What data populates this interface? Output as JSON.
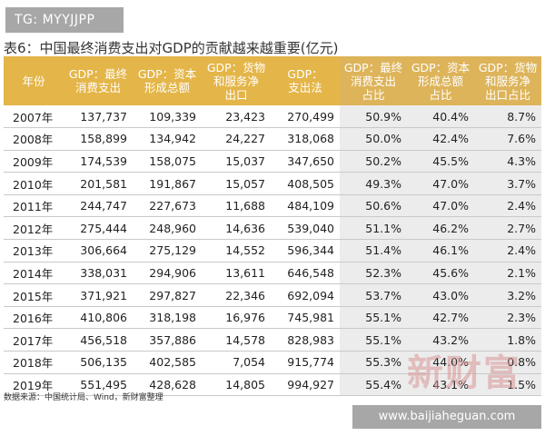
{
  "tag": "TG: MYYJJPP",
  "title": "表6：中国最终消费支出对GDP的贡献越来越重要(亿元)",
  "headers": [
    "年份",
    "GDP：最终\n消费支出",
    "GDP：资本\n形成总额",
    "GDP：货物\n和服务净\n出口",
    "GDP：\n支出法",
    "GDP：最终\n消费支出\n占比",
    "GDP：资本\n形成总额\n占比",
    "GDP：货物\n和服务净\n出口占比"
  ],
  "rows": [
    [
      "2007年",
      "137,737",
      "109,339",
      "23,423",
      "270,499",
      "50.9%",
      "40.4%",
      "8.7%"
    ],
    [
      "2008年",
      "158,899",
      "134,942",
      "24,227",
      "318,068",
      "50.0%",
      "42.4%",
      "7.6%"
    ],
    [
      "2009年",
      "174,539",
      "158,075",
      "15,037",
      "347,650",
      "50.2%",
      "45.5%",
      "4.3%"
    ],
    [
      "2010年",
      "201,581",
      "191,867",
      "15,057",
      "408,505",
      "49.3%",
      "47.0%",
      "3.7%"
    ],
    [
      "2011年",
      "244,747",
      "227,673",
      "11,688",
      "484,109",
      "50.6%",
      "47.0%",
      "2.4%"
    ],
    [
      "2012年",
      "275,444",
      "248,960",
      "14,636",
      "539,040",
      "51.1%",
      "46.2%",
      "2.7%"
    ],
    [
      "2013年",
      "306,664",
      "275,129",
      "14,552",
      "596,344",
      "51.4%",
      "46.1%",
      "2.4%"
    ],
    [
      "2014年",
      "338,031",
      "294,906",
      "13,611",
      "646,548",
      "52.3%",
      "45.6%",
      "2.1%"
    ],
    [
      "2015年",
      "371,921",
      "297,827",
      "22,346",
      "692,094",
      "53.7%",
      "43.0%",
      "3.2%"
    ],
    [
      "2016年",
      "410,806",
      "318,198",
      "16,976",
      "745,981",
      "55.1%",
      "42.7%",
      "2.3%"
    ],
    [
      "2017年",
      "456,518",
      "357,886",
      "14,578",
      "828,983",
      "55.1%",
      "43.2%",
      "1.8%"
    ],
    [
      "2018年",
      "506,135",
      "402,585",
      "7,054",
      "915,774",
      "55.3%",
      "44.0%",
      "0.8%"
    ],
    [
      "2019年",
      "551,495",
      "428,628",
      "14,805",
      "994,927",
      "55.4%",
      "43.1%",
      "1.5%"
    ]
  ],
  "source": "数据来源：中国统计局、Wind，新财富整理",
  "watermark": "新财富",
  "url": "www.baijiaheguan.com",
  "colors": {
    "header_bg": "#e4b548",
    "share_column_bg": "#ececec",
    "tag_bg": "#a7a7a7"
  }
}
